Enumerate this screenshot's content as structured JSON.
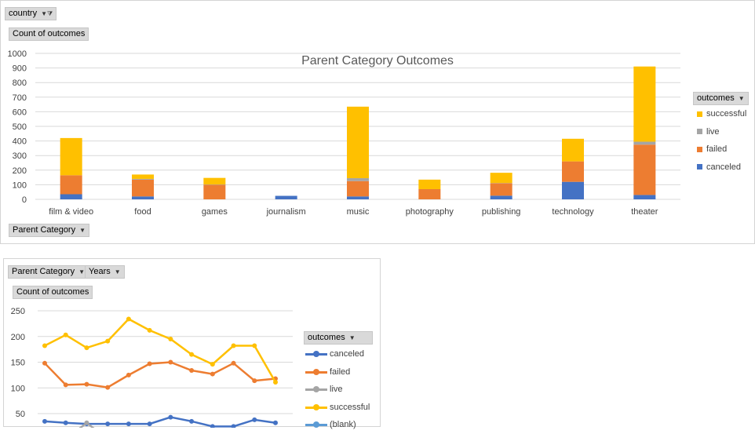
{
  "top": {
    "filter_button": "country",
    "value_label": "Count of outcomes",
    "axis_button": "Parent Category",
    "legend_button": "outcomes"
  },
  "bottom": {
    "category_button": "Parent Category",
    "years_button": "Years",
    "value_label": "Count of outcomes",
    "legend_button": "outcomes"
  },
  "chart_data": [
    {
      "type": "bar",
      "stacked": true,
      "title": "Parent Category Outcomes",
      "categories": [
        "film & video",
        "food",
        "games",
        "journalism",
        "music",
        "photography",
        "publishing",
        "technology",
        "theater"
      ],
      "series": [
        {
          "name": "canceled",
          "color": "#4472C4",
          "values": [
            35,
            20,
            0,
            24,
            20,
            0,
            25,
            120,
            30
          ]
        },
        {
          "name": "failed",
          "color": "#ED7D31",
          "values": [
            130,
            115,
            100,
            0,
            105,
            70,
            85,
            140,
            345
          ]
        },
        {
          "name": "live",
          "color": "#A5A5A5",
          "values": [
            0,
            5,
            2,
            0,
            20,
            0,
            2,
            0,
            20
          ]
        },
        {
          "name": "successful",
          "color": "#FFC000",
          "values": [
            255,
            30,
            45,
            0,
            490,
            65,
            70,
            155,
            515
          ]
        }
      ],
      "ylim": [
        0,
        1000
      ],
      "yticks": [
        0,
        100,
        200,
        300,
        400,
        500,
        600,
        700,
        800,
        900,
        1000
      ],
      "legend_order": [
        "successful",
        "live",
        "failed",
        "canceled"
      ],
      "legend": "right",
      "grid": true
    },
    {
      "type": "line",
      "points": 12,
      "series": [
        {
          "name": "canceled",
          "color": "#4472C4",
          "values": [
            35,
            32,
            30,
            30,
            30,
            30,
            43,
            35,
            25,
            25,
            38,
            32
          ]
        },
        {
          "name": "failed",
          "color": "#ED7D31",
          "values": [
            148,
            106,
            107,
            101,
            125,
            147,
            150,
            134,
            127,
            148,
            114,
            118
          ]
        },
        {
          "name": "live",
          "color": "#A5A5A5",
          "values": [
            0,
            0,
            32,
            0,
            0,
            0,
            0,
            0,
            0,
            0,
            0,
            0
          ]
        },
        {
          "name": "successful",
          "color": "#FFC000",
          "values": [
            182,
            203,
            178,
            191,
            234,
            212,
            195,
            165,
            146,
            182,
            182,
            111
          ]
        },
        {
          "name": "(blank)",
          "color": "#5B9BD5",
          "values": []
        }
      ],
      "ylim": [
        0,
        250
      ],
      "yticks": [
        50,
        100,
        150,
        200,
        250
      ],
      "legend": "right",
      "grid": true
    }
  ]
}
